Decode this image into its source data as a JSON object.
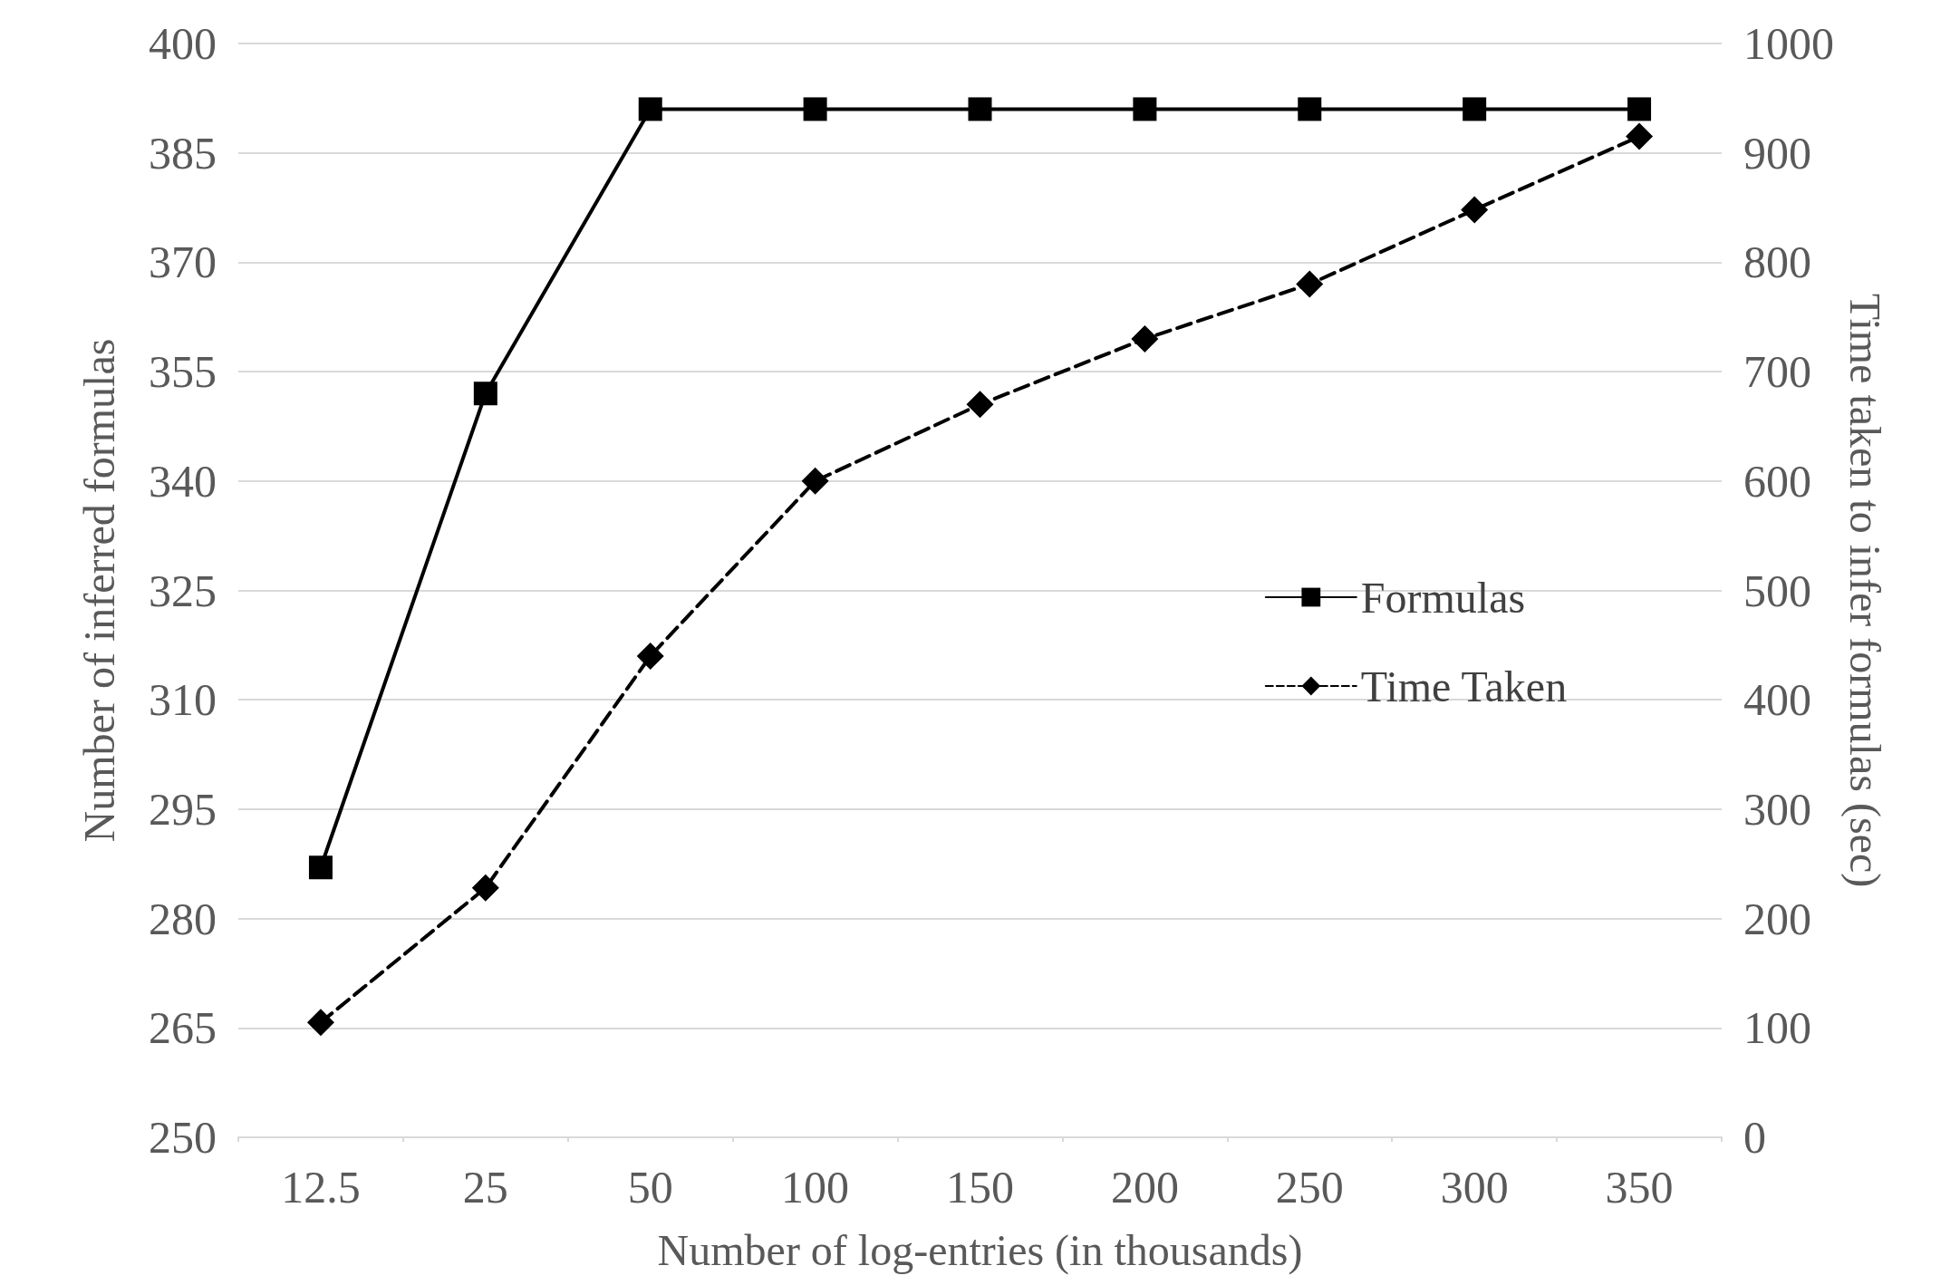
{
  "chart_data": {
    "type": "line",
    "xlabel": "Number of log-entries (in thousands)",
    "ylabel": "Number of inferred formulas",
    "y2label": "Time taken to infer formulas (sec)",
    "categories": [
      "12.5",
      "25",
      "50",
      "100",
      "150",
      "200",
      "250",
      "300",
      "350"
    ],
    "series": [
      {
        "name": "Formulas",
        "color": "#000000",
        "marker": "square",
        "line_style": "solid",
        "values": [
          287,
          352,
          391,
          391,
          391,
          391,
          391,
          391,
          391
        ]
      },
      {
        "name": "Time Taken",
        "color": "#000000",
        "marker": "diamond",
        "line_style": "dashed",
        "axis": "y2",
        "values": [
          105,
          228,
          440,
          600,
          670,
          730,
          780,
          848,
          915
        ]
      }
    ],
    "ylim": [
      250,
      400
    ],
    "yticks": [
      250,
      265,
      280,
      295,
      310,
      325,
      340,
      355,
      370,
      385,
      400
    ],
    "y2lim": [
      0,
      1000
    ],
    "y2ticks": [
      0,
      100,
      200,
      300,
      400,
      500,
      600,
      700,
      800,
      900,
      1000
    ],
    "grid": "y",
    "legend": "right"
  }
}
